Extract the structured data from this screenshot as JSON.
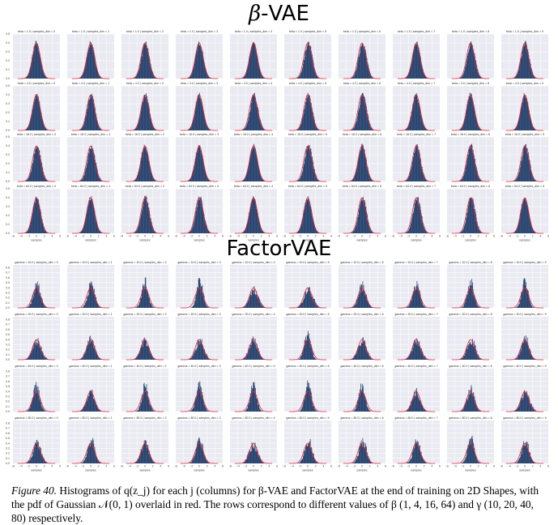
{
  "figure": {
    "sections": [
      {
        "title_symbol": "β",
        "title_text": "-VAE",
        "param_name": "beta",
        "row_values": [
          "1.0",
          "4.0",
          "16.0",
          "64.0"
        ],
        "dims": [
          0,
          1,
          2,
          3,
          4,
          5,
          6,
          7,
          8,
          9
        ],
        "y_ticks": [
          "0.0",
          "0.1",
          "0.2",
          "0.3",
          "0.4",
          "0.5"
        ],
        "x_ticks": [
          "−6",
          "−4",
          "−2",
          "0",
          "2",
          "4",
          "6"
        ],
        "xlabel": "samples"
      },
      {
        "title_symbol": "",
        "title_text": "FactorVAE",
        "param_name": "gamma",
        "row_values": [
          "10.0",
          "20.0",
          "40.0",
          "80.0"
        ],
        "dims": [
          0,
          1,
          2,
          3,
          4,
          5,
          6,
          7,
          8,
          9
        ],
        "y_ticks": [
          "0.0",
          "0.1",
          "0.2",
          "0.3",
          "0.4",
          "0.5",
          "0.6",
          "0.7",
          "0.8"
        ],
        "x_ticks": [
          "−6",
          "−4",
          "−2",
          "0",
          "2",
          "4",
          "6"
        ],
        "xlabel": "samples"
      }
    ],
    "panel_title_template": "{param} = {value} | samples_dim = {dim}",
    "colors": {
      "histogram": "#2b4670",
      "pdf_curve": "#e8283a",
      "panel_bg": "#eaeaf2",
      "grid": "#ffffff"
    }
  },
  "caption": {
    "label": "Figure 40.",
    "text": "Histograms of q(z_j) for each j (columns) for β-VAE and FactorVAE at the end of training on 2D Shapes, with the pdf of Gaussian 𝒩(0, 1) overlaid in red. The rows correspond to different values of β (1, 4, 16, 64) and γ (10, 20, 40, 80) respectively."
  }
}
